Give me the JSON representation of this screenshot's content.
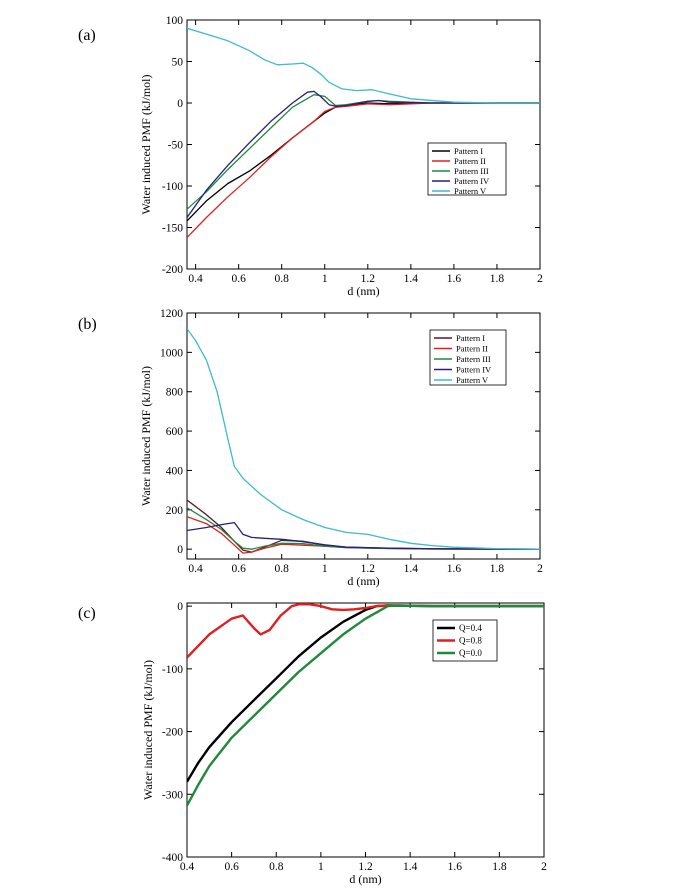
{
  "chart_data": [
    {
      "type": "line",
      "panel_label": "(a)",
      "xlabel": "d (nm)",
      "ylabel": "Water induced PMF (kJ/mol)",
      "xlim": [
        0.36,
        2.0
      ],
      "ylim": [
        -200,
        100
      ],
      "xticks": [
        0.4,
        0.6,
        0.8,
        1.0,
        1.2,
        1.4,
        1.6,
        1.8,
        2.0
      ],
      "xtick_labels": [
        "0.4",
        "0.6",
        "0.8",
        "1",
        "1.2",
        "1.4",
        "1.6",
        "1.8",
        "2"
      ],
      "yticks": [
        -200,
        -150,
        -100,
        -50,
        0,
        50,
        100
      ],
      "ytick_labels": [
        "-200",
        "-150",
        "-100",
        "-50",
        "0",
        "50",
        "100"
      ],
      "legend_position": "middle-right",
      "series": [
        {
          "name": "Pattern I",
          "color": "#000000",
          "x": [
            0.36,
            0.45,
            0.55,
            0.65,
            0.75,
            0.85,
            0.95,
            1.0,
            1.05,
            1.1,
            1.2,
            1.3,
            1.5,
            1.7,
            2.0
          ],
          "y": [
            -142,
            -118,
            -97,
            -82,
            -63,
            -42,
            -22,
            -12,
            -5,
            -3,
            0,
            -1,
            0,
            0,
            0
          ]
        },
        {
          "name": "Pattern II",
          "color": "#e02020",
          "x": [
            0.36,
            0.45,
            0.55,
            0.65,
            0.75,
            0.85,
            0.95,
            1.0,
            1.05,
            1.1,
            1.2,
            1.3,
            1.5,
            1.7,
            2.0
          ],
          "y": [
            -162,
            -138,
            -113,
            -90,
            -65,
            -42,
            -22,
            -10,
            -5,
            -4,
            -1,
            -2,
            0,
            0,
            0
          ]
        },
        {
          "name": "Pattern III",
          "color": "#1f8a3a",
          "x": [
            0.36,
            0.45,
            0.55,
            0.65,
            0.75,
            0.85,
            0.95,
            1.0,
            1.05,
            1.1,
            1.2,
            1.25,
            1.3,
            1.5,
            1.7,
            2.0
          ],
          "y": [
            -128,
            -107,
            -80,
            -55,
            -30,
            -5,
            10,
            8,
            -3,
            -2,
            2,
            3,
            2,
            0,
            0,
            0
          ]
        },
        {
          "name": "Pattern IV",
          "color": "#2a1f7a",
          "x": [
            0.36,
            0.45,
            0.55,
            0.65,
            0.75,
            0.85,
            0.92,
            0.95,
            0.98,
            1.02,
            1.05,
            1.1,
            1.2,
            1.25,
            1.3,
            1.5,
            1.7,
            2.0
          ],
          "y": [
            -138,
            -105,
            -75,
            -48,
            -22,
            0,
            13,
            14,
            8,
            -2,
            -4,
            -3,
            2,
            3,
            1,
            0,
            0,
            0
          ]
        },
        {
          "name": "Pattern V",
          "color": "#3bbcc8",
          "x": [
            0.36,
            0.45,
            0.55,
            0.65,
            0.72,
            0.78,
            0.85,
            0.9,
            0.94,
            0.98,
            1.02,
            1.08,
            1.15,
            1.22,
            1.3,
            1.4,
            1.6,
            1.8,
            2.0
          ],
          "y": [
            90,
            83,
            75,
            63,
            52,
            46,
            47,
            48,
            43,
            35,
            25,
            17,
            15,
            16,
            11,
            5,
            1,
            0,
            0
          ]
        }
      ]
    },
    {
      "type": "line",
      "panel_label": "(b)",
      "xlabel": "d (nm)",
      "ylabel": "Water induced PMF (kJ/mol)",
      "xlim": [
        0.36,
        2.0
      ],
      "ylim": [
        -50,
        1200
      ],
      "xticks": [
        0.4,
        0.6,
        0.8,
        1.0,
        1.2,
        1.4,
        1.6,
        1.8,
        2.0
      ],
      "xtick_labels": [
        "0.4",
        "0.6",
        "0.8",
        "1",
        "1.2",
        "1.4",
        "1.6",
        "1.8",
        "2"
      ],
      "yticks": [
        0,
        200,
        400,
        600,
        800,
        1000,
        1200
      ],
      "ytick_labels": [
        "0",
        "200",
        "400",
        "600",
        "800",
        "1000",
        "1200"
      ],
      "legend_position": "top-right",
      "series": [
        {
          "name": "Pattern I",
          "color": "#5a1a2a",
          "x": [
            0.36,
            0.45,
            0.52,
            0.58,
            0.62,
            0.66,
            0.72,
            0.8,
            0.9,
            1.0,
            1.1,
            1.3,
            1.5,
            2.0
          ],
          "y": [
            250,
            175,
            110,
            40,
            -5,
            -15,
            10,
            45,
            40,
            20,
            10,
            5,
            2,
            0
          ]
        },
        {
          "name": "Pattern II",
          "color": "#e02020",
          "x": [
            0.36,
            0.45,
            0.52,
            0.58,
            0.62,
            0.66,
            0.72,
            0.8,
            0.9,
            1.0,
            1.1,
            1.3,
            1.5,
            2.0
          ],
          "y": [
            165,
            130,
            80,
            20,
            -20,
            -15,
            5,
            25,
            20,
            15,
            8,
            4,
            1,
            0
          ]
        },
        {
          "name": "Pattern III",
          "color": "#1f8a3a",
          "x": [
            0.36,
            0.45,
            0.52,
            0.58,
            0.62,
            0.66,
            0.72,
            0.8,
            0.9,
            1.0,
            1.1,
            1.3,
            1.5,
            2.0
          ],
          "y": [
            210,
            150,
            100,
            40,
            5,
            0,
            15,
            30,
            28,
            15,
            8,
            3,
            1,
            0
          ]
        },
        {
          "name": "Pattern IV",
          "color": "#2a1f7a",
          "x": [
            0.36,
            0.45,
            0.52,
            0.58,
            0.62,
            0.66,
            0.72,
            0.8,
            0.9,
            1.0,
            1.1,
            1.3,
            1.5,
            2.0
          ],
          "y": [
            95,
            110,
            125,
            135,
            75,
            60,
            55,
            50,
            38,
            22,
            10,
            5,
            2,
            0
          ]
        },
        {
          "name": "Pattern V",
          "color": "#3bbcc8",
          "x": [
            0.36,
            0.4,
            0.45,
            0.5,
            0.55,
            0.58,
            0.62,
            0.7,
            0.8,
            0.9,
            1.0,
            1.1,
            1.2,
            1.3,
            1.4,
            1.5,
            1.6,
            1.8,
            2.0
          ],
          "y": [
            1120,
            1060,
            960,
            800,
            560,
            420,
            360,
            280,
            200,
            150,
            110,
            85,
            75,
            50,
            30,
            18,
            10,
            3,
            0
          ]
        }
      ]
    },
    {
      "type": "line",
      "panel_label": "(c)",
      "xlabel": "d (nm)",
      "ylabel": "Water induced PMF (kJ/mol)",
      "xlim": [
        0.4,
        2.0
      ],
      "ylim": [
        -400,
        5
      ],
      "xticks": [
        0.4,
        0.6,
        0.8,
        1.0,
        1.2,
        1.4,
        1.6,
        1.8,
        2.0
      ],
      "xtick_labels": [
        "0.4",
        "0.6",
        "0.8",
        "1",
        "1.2",
        "1.4",
        "1.6",
        "1.8",
        "2"
      ],
      "yticks": [
        -400,
        -300,
        -200,
        -100,
        0
      ],
      "ytick_labels": [
        "-400",
        "-300",
        "-200",
        "-100",
        "0"
      ],
      "legend_position": "top-right",
      "series": [
        {
          "name": "Q=0.4",
          "color": "#000000",
          "x": [
            0.4,
            0.45,
            0.5,
            0.6,
            0.7,
            0.8,
            0.9,
            1.0,
            1.1,
            1.2,
            1.25,
            1.3,
            1.5,
            2.0
          ],
          "y": [
            -280,
            -250,
            -225,
            -185,
            -150,
            -115,
            -80,
            -50,
            -25,
            -6,
            0,
            1,
            0,
            0
          ]
        },
        {
          "name": "Q=0.8",
          "color": "#e02020",
          "x": [
            0.4,
            0.5,
            0.6,
            0.65,
            0.7,
            0.73,
            0.77,
            0.82,
            0.87,
            0.9,
            0.95,
            1.0,
            1.05,
            1.1,
            1.15,
            1.2,
            1.25,
            1.3,
            1.5,
            2.0
          ],
          "y": [
            -82,
            -45,
            -20,
            -15,
            -35,
            -45,
            -38,
            -15,
            0,
            3,
            3,
            0,
            -5,
            -6,
            -5,
            -3,
            0,
            1,
            0,
            0
          ]
        },
        {
          "name": "Q=0.0",
          "color": "#1f8a3a",
          "x": [
            0.4,
            0.45,
            0.5,
            0.6,
            0.7,
            0.8,
            0.9,
            1.0,
            1.1,
            1.2,
            1.3,
            1.35,
            1.5,
            2.0
          ],
          "y": [
            -318,
            -285,
            -255,
            -210,
            -175,
            -140,
            -105,
            -75,
            -45,
            -20,
            0,
            1,
            0,
            0
          ]
        }
      ]
    }
  ]
}
